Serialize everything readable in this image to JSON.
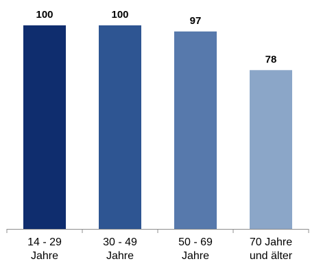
{
  "chart_data": {
    "type": "bar",
    "categories": [
      [
        "14 - 29",
        "Jahre"
      ],
      [
        "30 - 49",
        "Jahre"
      ],
      [
        "50 - 69",
        "Jahre"
      ],
      [
        "70 Jahre",
        "und älter"
      ]
    ],
    "values": [
      100,
      100,
      97,
      78
    ],
    "data_labels": [
      "100",
      "100",
      "97",
      "78"
    ],
    "bar_colors": [
      "#0F2D6E",
      "#2E5592",
      "#5779AC",
      "#8BA6C8"
    ],
    "axis_color": "#8C8C8C",
    "ylim": [
      0,
      100
    ],
    "grid": false,
    "legend": "none",
    "title": "",
    "xlabel": "",
    "ylabel": ""
  }
}
